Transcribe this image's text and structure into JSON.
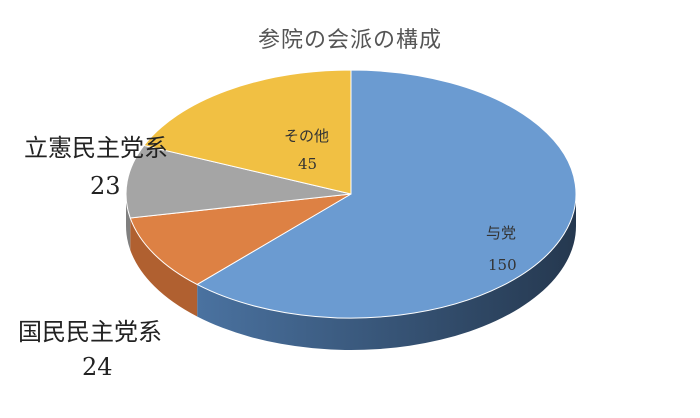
{
  "chart_data": {
    "type": "pie",
    "title": "参院の会派の構成",
    "categories": [
      "与党",
      "国民民主党系",
      "立憲民主党系",
      "その他"
    ],
    "values": [
      150,
      24,
      23,
      45
    ],
    "colors": [
      "#6b9bd1",
      "#dd8144",
      "#a5a5a5",
      "#f1c043"
    ],
    "side_colors": [
      "#3d5f87",
      "#b06030",
      "#808080",
      "#c49a2e"
    ],
    "legend": "none",
    "data_labels": true,
    "three_d": true
  }
}
